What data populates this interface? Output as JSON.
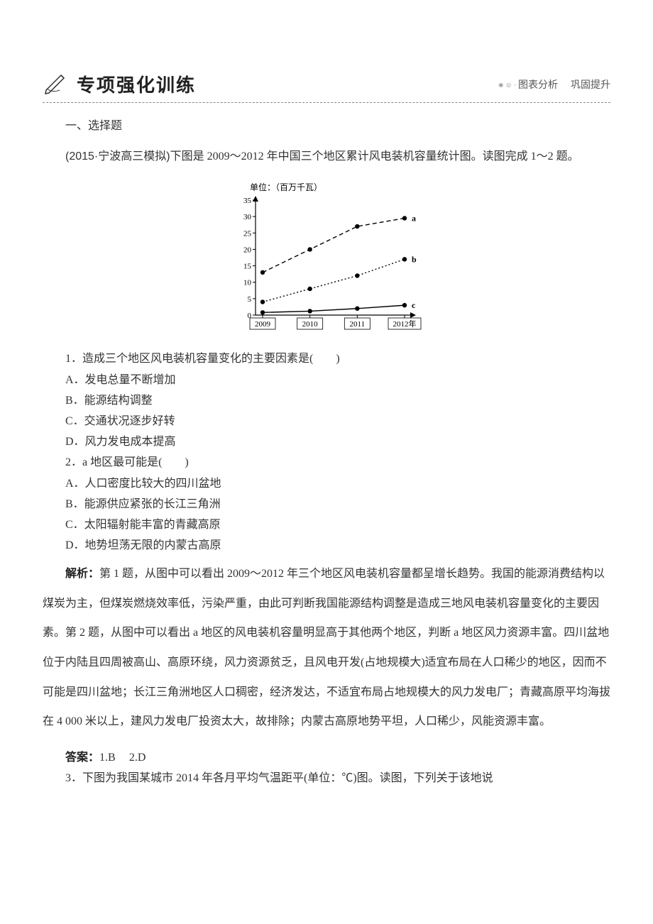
{
  "header": {
    "title": "专项强化训练",
    "tagline_a": "图表分析",
    "tagline_b": "巩固提升"
  },
  "section1": {
    "title": "一、选择题",
    "intro_src": "(2015·宁波高三模拟)",
    "intro_rest": "下图是 2009～2012 年中国三个地区累计风电装机容量统计图。读图完成 1～2 题。"
  },
  "chart": {
    "unit_label": "单位：（百万千瓦）",
    "x_labels": [
      "2009",
      "2010",
      "2011",
      "2012年"
    ],
    "y_min": 0,
    "y_max": 35,
    "y_step": 5,
    "series": [
      {
        "name": "a",
        "dash": "6,4",
        "points": [
          [
            2009,
            13
          ],
          [
            2010,
            20
          ],
          [
            2011,
            27
          ],
          [
            2012,
            29.5
          ]
        ]
      },
      {
        "name": "b",
        "dash": "2,3",
        "points": [
          [
            2009,
            4
          ],
          [
            2010,
            8
          ],
          [
            2011,
            12
          ],
          [
            2012,
            17
          ]
        ]
      },
      {
        "name": "c",
        "dash": "0",
        "points": [
          [
            2009,
            0.8
          ],
          [
            2010,
            1.2
          ],
          [
            2011,
            2
          ],
          [
            2012,
            3
          ]
        ]
      }
    ],
    "colors": {
      "axis": "#000000",
      "line": "#000000",
      "text": "#000000"
    },
    "fonts": {
      "unit": 12,
      "tick": 11,
      "series_label": 12
    }
  },
  "q1": {
    "stem": "1．造成三个地区风电装机容量变化的主要因素是(　　)",
    "A": "A．发电总量不断增加",
    "B": "B．能源结构调整",
    "C": "C．交通状况逐步好转",
    "D": "D．风力发电成本提高"
  },
  "q2": {
    "stem": "2．a 地区最可能是(　　)",
    "A": "A．人口密度比较大的四川盆地",
    "B": "B．能源供应紧张的长江三角洲",
    "C": "C．太阳辐射能丰富的青藏高原",
    "D": "D．地势坦荡无限的内蒙古高原"
  },
  "parse": {
    "label": "解析：",
    "text": "第 1 题，从图中可以看出 2009～2012 年三个地区风电装机容量都呈增长趋势。我国的能源消费结构以煤炭为主，但煤炭燃烧效率低，污染严重，由此可判断我国能源结构调整是造成三地风电装机容量变化的主要因素。第 2 题，从图中可以看出 a 地区的风电装机容量明显高于其他两个地区，判断 a 地区风力资源丰富。四川盆地位于内陆且四周被高山、高原环绕，风力资源贫乏，且风电开发(占地规模大)适宜布局在人口稀少的地区，因而不可能是四川盆地；长江三角洲地区人口稠密，经济发达，不适宜布局占地规模大的风力发电厂；青藏高原平均海拔在 4 000 米以上，建风力发电厂投资太大，故排除；内蒙古高原地势平坦，人口稀少，风能资源丰富。"
  },
  "answer": {
    "label": "答案：",
    "a1": "1.B",
    "a2": "2.D"
  },
  "q3": {
    "stem": "3．下图为我国某城市 2014 年各月平均气温距平(单位：℃)图。读图，下列关于该地说"
  }
}
